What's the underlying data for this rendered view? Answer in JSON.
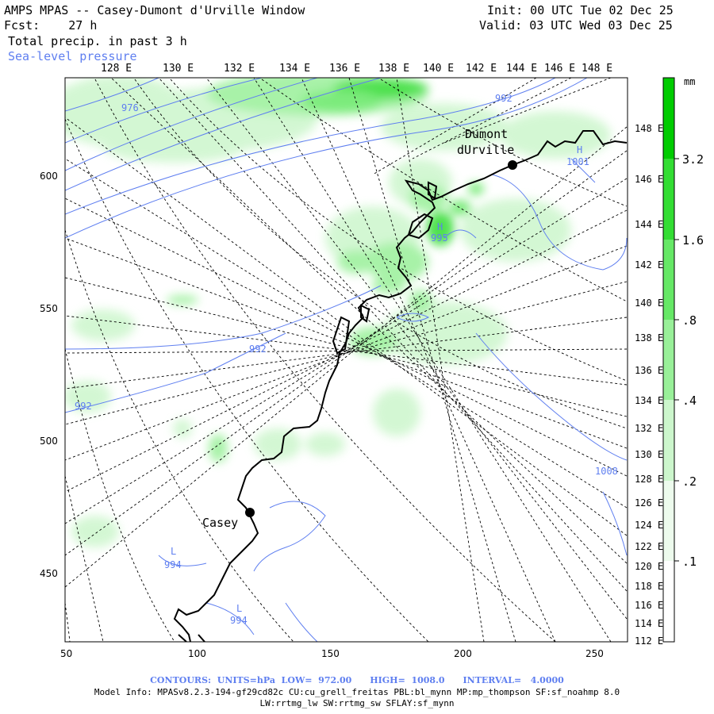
{
  "header": {
    "title": "AMPS MPAS -- Casey-Dumont d'Urville Window",
    "forecast": "Fcst:    27 h",
    "field": "Total precip. in past 3 h",
    "overlay": "Sea-level pressure",
    "init": "Init: 00 UTC Tue 02 Dec 25",
    "valid": "Valid: 03 UTC Wed 03 Dec 25"
  },
  "axes": {
    "x_ticks": [
      "50",
      "100",
      "150",
      "200",
      "250"
    ],
    "y_ticks": [
      "450",
      "500",
      "550",
      "600"
    ],
    "top_lon_labels": [
      "128 E",
      "130 E",
      "132 E",
      "134 E",
      "136 E",
      "138 E",
      "140 E",
      "142 E",
      "144 E",
      "146 E",
      "148 E"
    ],
    "right_lon_labels": [
      "148 E",
      "146 E",
      "144 E",
      "142 E",
      "140 E",
      "138 E",
      "136 E",
      "134 E",
      "132 E",
      "130 E",
      "128 E",
      "126 E",
      "124 E",
      "122 E",
      "120 E",
      "118 E",
      "116 E",
      "114 E",
      "112 E"
    ]
  },
  "colorbar": {
    "unit": "mm",
    "labels": [
      "3.2",
      "1.6",
      ".8",
      ".4",
      ".2",
      ".1"
    ],
    "colors": [
      "#00cc00",
      "#33dd33",
      "#66e866",
      "#99f099",
      "#ccf6cc",
      "#edfbed",
      "#ffffff"
    ]
  },
  "stations": [
    {
      "name": "Dumont\ndUrville",
      "label_line1": "Dumont",
      "label_line2": "dUrville"
    },
    {
      "name": "Casey",
      "label_line1": "Casey"
    }
  ],
  "pressure_labels": {
    "c976": "976",
    "c992a": "992",
    "c992b": "992",
    "c992c": "992",
    "c1008": "1008",
    "h1001_letter": "H",
    "h1001_value": "1001",
    "h995_letter": "H",
    "h995_value": "995",
    "l994a_letter": "L",
    "l994a_value": "994",
    "l994b_letter": "L",
    "l994b_value": "994"
  },
  "footer": {
    "contours": "CONTOURS:  UNITS=hPa  LOW=  972.00      HIGH=  1008.0      INTERVAL=   4.0000",
    "model_info": "Model Info: MPASv8.2.3-194-gf29cd82c CU:cu_grell_freitas PBL:bl_mynn MP:mp_thompson SF:sf_noahmp 8.0",
    "model_info2": "LW:rrtmg_lw SW:rrtmg_sw SFLAY:sf_mynn"
  },
  "colors": {
    "pressure_contour": "#5f7ff0",
    "coastline": "#000000",
    "grid": "#000000"
  }
}
